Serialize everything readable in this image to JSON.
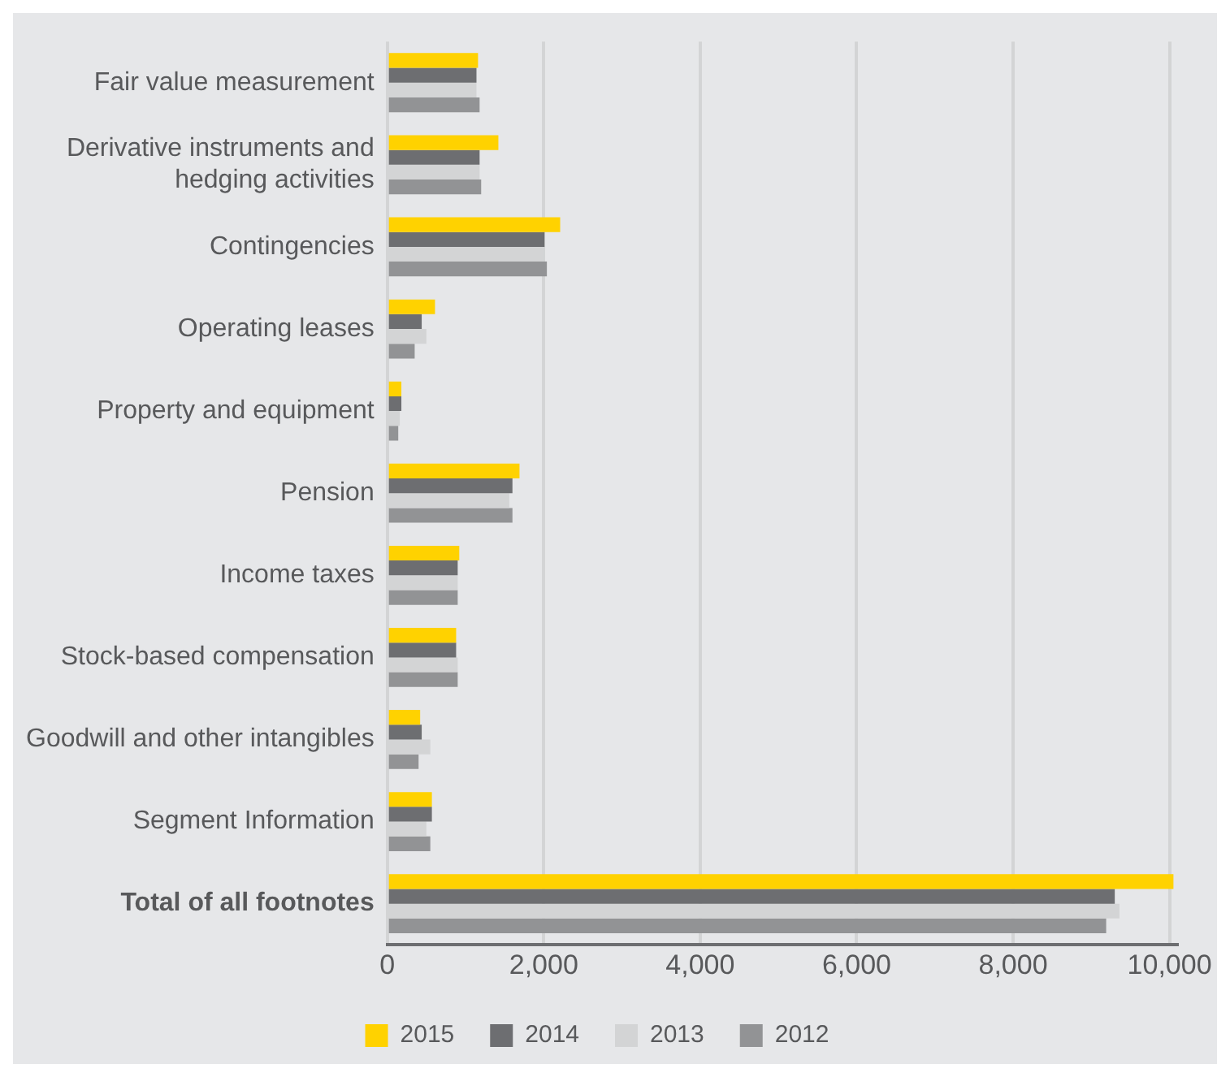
{
  "chart_data": {
    "type": "bar",
    "orientation": "horizontal",
    "categories": [
      "Fair value measurement",
      "Derivative instruments and\nhedging activities",
      "Contingencies",
      "Operating leases",
      "Property and equipment",
      "Pension",
      "Income taxes",
      "Stock-based compensation",
      "Goodwill and other intangibles",
      "Segment Information",
      "Total of all footnotes"
    ],
    "series": [
      {
        "name": "2015",
        "color": "#ffd200",
        "values": [
          1160,
          1420,
          2210,
          610,
          180,
          1690,
          920,
          880,
          420,
          570,
          10050
        ]
      },
      {
        "name": "2014",
        "color": "#6d6e71",
        "values": [
          1140,
          1180,
          2010,
          440,
          180,
          1600,
          900,
          880,
          440,
          570,
          9300
        ]
      },
      {
        "name": "2013",
        "color": "#d3d4d5",
        "values": [
          1140,
          1180,
          2000,
          500,
          160,
          1560,
          900,
          900,
          550,
          500,
          9360
        ]
      },
      {
        "name": "2012",
        "color": "#929395",
        "values": [
          1180,
          1200,
          2040,
          350,
          140,
          1600,
          900,
          900,
          400,
          550,
          9190
        ]
      }
    ],
    "xlim": [
      0,
      10100
    ],
    "xticks": [
      {
        "value": 0,
        "label": "0"
      },
      {
        "value": 2000,
        "label": "2,000"
      },
      {
        "value": 4000,
        "label": "4,000"
      },
      {
        "value": 6000,
        "label": "6,000"
      },
      {
        "value": 8000,
        "label": "8,000"
      },
      {
        "value": 10000,
        "label": "10,000"
      }
    ],
    "grid": "x",
    "legend": "bottom"
  }
}
